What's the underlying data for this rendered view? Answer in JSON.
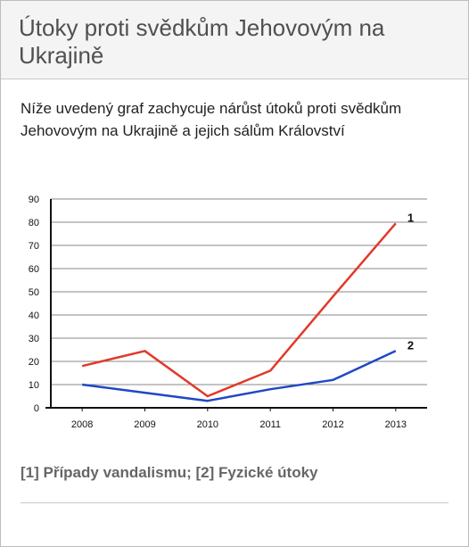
{
  "header": {
    "title": "Útoky proti svědkům Jehovovým na Ukrajině"
  },
  "intro": "Níže uvedený graf zachycuje nárůst útoků proti svědkům Jehovovým na Ukrajině a jejich sálům Království",
  "caption": "[1] Případy vandalismu; [2] Fyzické útoky",
  "colors": {
    "series_1": "#e03a2a",
    "series_2": "#1f48c4",
    "gridline": "#8a8a8a",
    "axis": "#111111"
  },
  "chart_data": {
    "type": "line",
    "x": [
      "2008",
      "2009",
      "2010",
      "2011",
      "2012",
      "2013"
    ],
    "ylim": [
      0,
      90
    ],
    "yticks": [
      0,
      10,
      20,
      30,
      40,
      50,
      60,
      70,
      80,
      90
    ],
    "grid": true,
    "legend": "end-of-line labels",
    "series": [
      {
        "name": "1",
        "values": [
          18,
          24.5,
          5,
          16,
          48,
          79.5
        ]
      },
      {
        "name": "2",
        "values": [
          10,
          6.5,
          3,
          8,
          12,
          24.5
        ]
      }
    ],
    "title": "",
    "xlabel": "",
    "ylabel": ""
  }
}
